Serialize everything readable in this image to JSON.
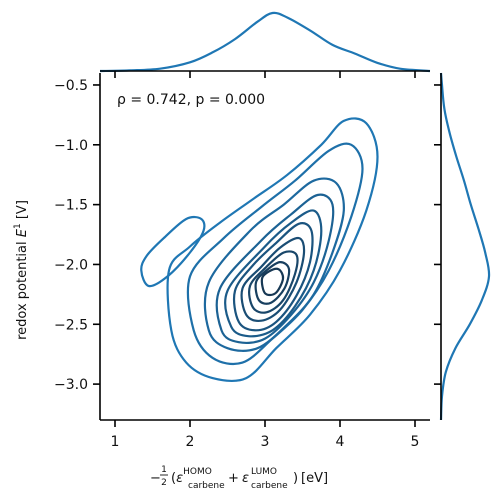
{
  "chart_data": {
    "type": "kde-contour-joint",
    "annotation": "ρ = 0.742, p = 0.000",
    "xlabel": {
      "prefix": "−",
      "frac_num": "1",
      "frac_den": "2",
      "eps": "ε",
      "sup1": "HOMO",
      "sub1": "carbene",
      "plus": "+",
      "sup2": "LUMO",
      "sub2": "carbene",
      "unit": "[eV]"
    },
    "ylabel": {
      "text": "redox potential ",
      "var": "E",
      "sup": "1",
      "unit": " [V]"
    },
    "xlim": [
      0.8,
      5.2
    ],
    "ylim": [
      -3.3,
      -0.4
    ],
    "xticks": [
      1,
      2,
      3,
      4,
      5
    ],
    "xtick_labels": [
      "1",
      "2",
      "3",
      "4",
      "5"
    ],
    "yticks": [
      -0.5,
      -1.0,
      -1.5,
      -2.0,
      -2.5,
      -3.0
    ],
    "ytick_labels": [
      "−0.5",
      "−1.0",
      "−1.5",
      "−2.0",
      "−2.5",
      "−3.0"
    ],
    "color": "#1f77b4",
    "contours": [
      {
        "level": 1,
        "cx": 3.02,
        "cy": -1.95,
        "sx": 1.45,
        "sy": 1.18,
        "rot": -50,
        "pts": [
          [
            1.72,
            -2.05
          ],
          [
            1.75,
            -2.55
          ],
          [
            1.95,
            -2.82
          ],
          [
            2.3,
            -2.95
          ],
          [
            2.75,
            -2.95
          ],
          [
            3.15,
            -2.7
          ],
          [
            3.6,
            -2.42
          ],
          [
            4.0,
            -2.05
          ],
          [
            4.35,
            -1.55
          ],
          [
            4.5,
            -1.1
          ],
          [
            4.35,
            -0.82
          ],
          [
            4.05,
            -0.8
          ],
          [
            3.75,
            -1.0
          ],
          [
            3.3,
            -1.25
          ],
          [
            2.85,
            -1.45
          ],
          [
            2.4,
            -1.65
          ],
          [
            2.0,
            -1.85
          ]
        ]
      },
      {
        "level": 2,
        "pts": [
          [
            2.0,
            -2.1
          ],
          [
            2.05,
            -2.55
          ],
          [
            2.3,
            -2.78
          ],
          [
            2.7,
            -2.82
          ],
          [
            3.1,
            -2.62
          ],
          [
            3.5,
            -2.38
          ],
          [
            3.85,
            -2.05
          ],
          [
            4.15,
            -1.6
          ],
          [
            4.3,
            -1.2
          ],
          [
            4.15,
            -1.0
          ],
          [
            3.85,
            -1.05
          ],
          [
            3.4,
            -1.3
          ],
          [
            2.95,
            -1.52
          ],
          [
            2.45,
            -1.78
          ]
        ]
      },
      {
        "level": 3,
        "pts": [
          [
            2.25,
            -2.15
          ],
          [
            2.25,
            -2.55
          ],
          [
            2.5,
            -2.7
          ],
          [
            2.9,
            -2.7
          ],
          [
            3.3,
            -2.5
          ],
          [
            3.65,
            -2.25
          ],
          [
            3.9,
            -1.9
          ],
          [
            4.05,
            -1.55
          ],
          [
            3.95,
            -1.32
          ],
          [
            3.65,
            -1.3
          ],
          [
            3.25,
            -1.5
          ],
          [
            2.8,
            -1.72
          ]
        ]
      },
      {
        "level": 4,
        "pts": [
          [
            2.4,
            -2.2
          ],
          [
            2.42,
            -2.55
          ],
          [
            2.65,
            -2.65
          ],
          [
            3.0,
            -2.62
          ],
          [
            3.35,
            -2.42
          ],
          [
            3.65,
            -2.15
          ],
          [
            3.85,
            -1.8
          ],
          [
            3.9,
            -1.5
          ],
          [
            3.7,
            -1.42
          ],
          [
            3.35,
            -1.58
          ],
          [
            2.95,
            -1.8
          ]
        ]
      },
      {
        "level": 5,
        "pts": [
          [
            2.5,
            -2.22
          ],
          [
            2.55,
            -2.52
          ],
          [
            2.78,
            -2.6
          ],
          [
            3.1,
            -2.55
          ],
          [
            3.4,
            -2.35
          ],
          [
            3.65,
            -2.05
          ],
          [
            3.75,
            -1.72
          ],
          [
            3.65,
            -1.55
          ],
          [
            3.35,
            -1.65
          ],
          [
            3.0,
            -1.85
          ]
        ]
      },
      {
        "level": 6,
        "pts": [
          [
            2.6,
            -2.22
          ],
          [
            2.65,
            -2.48
          ],
          [
            2.88,
            -2.55
          ],
          [
            3.15,
            -2.48
          ],
          [
            3.42,
            -2.26
          ],
          [
            3.6,
            -1.98
          ],
          [
            3.62,
            -1.72
          ],
          [
            3.45,
            -1.66
          ],
          [
            3.15,
            -1.82
          ],
          [
            2.85,
            -2.0
          ]
        ]
      },
      {
        "level": 7,
        "pts": [
          [
            2.7,
            -2.2
          ],
          [
            2.75,
            -2.42
          ],
          [
            2.95,
            -2.47
          ],
          [
            3.2,
            -2.38
          ],
          [
            3.42,
            -2.15
          ],
          [
            3.52,
            -1.9
          ],
          [
            3.45,
            -1.78
          ],
          [
            3.2,
            -1.86
          ],
          [
            2.95,
            -2.02
          ]
        ]
      },
      {
        "level": 8,
        "pts": [
          [
            2.8,
            -2.18
          ],
          [
            2.84,
            -2.36
          ],
          [
            3.02,
            -2.4
          ],
          [
            3.24,
            -2.3
          ],
          [
            3.4,
            -2.08
          ],
          [
            3.42,
            -1.92
          ],
          [
            3.25,
            -1.9
          ],
          [
            3.02,
            -2.02
          ]
        ]
      },
      {
        "level": 9,
        "pts": [
          [
            2.88,
            -2.15
          ],
          [
            2.92,
            -2.3
          ],
          [
            3.08,
            -2.32
          ],
          [
            3.26,
            -2.2
          ],
          [
            3.32,
            -2.04
          ],
          [
            3.2,
            -1.98
          ],
          [
            3.02,
            -2.05
          ]
        ]
      },
      {
        "level": 10,
        "pts": [
          [
            2.96,
            -2.12
          ],
          [
            3.0,
            -2.24
          ],
          [
            3.14,
            -2.24
          ],
          [
            3.24,
            -2.12
          ],
          [
            3.18,
            -2.04
          ],
          [
            3.05,
            -2.06
          ]
        ]
      },
      {
        "level": 1,
        "pts": [
          [
            1.35,
            -2.05
          ],
          [
            1.45,
            -2.18
          ],
          [
            1.7,
            -2.1
          ],
          [
            2.0,
            -1.9
          ],
          [
            2.18,
            -1.72
          ],
          [
            2.15,
            -1.62
          ],
          [
            1.95,
            -1.62
          ],
          [
            1.65,
            -1.78
          ],
          [
            1.42,
            -1.93
          ]
        ]
      }
    ],
    "marginal_x": {
      "x": [
        0.8,
        1.2,
        1.6,
        2.0,
        2.3,
        2.6,
        2.9,
        3.1,
        3.3,
        3.6,
        3.9,
        4.2,
        4.5,
        4.8,
        5.2
      ],
      "density": [
        0.0,
        0.01,
        0.04,
        0.15,
        0.32,
        0.55,
        0.85,
        1.0,
        0.92,
        0.7,
        0.45,
        0.3,
        0.14,
        0.04,
        0.0
      ]
    },
    "marginal_y": {
      "y": [
        -3.3,
        -3.1,
        -2.9,
        -2.7,
        -2.5,
        -2.3,
        -2.1,
        -1.9,
        -1.7,
        -1.5,
        -1.3,
        -1.1,
        -0.9,
        -0.7,
        -0.5,
        -0.4
      ],
      "density": [
        0.0,
        0.02,
        0.1,
        0.3,
        0.6,
        0.85,
        1.0,
        0.92,
        0.78,
        0.62,
        0.48,
        0.32,
        0.18,
        0.07,
        0.02,
        0.0
      ]
    }
  }
}
